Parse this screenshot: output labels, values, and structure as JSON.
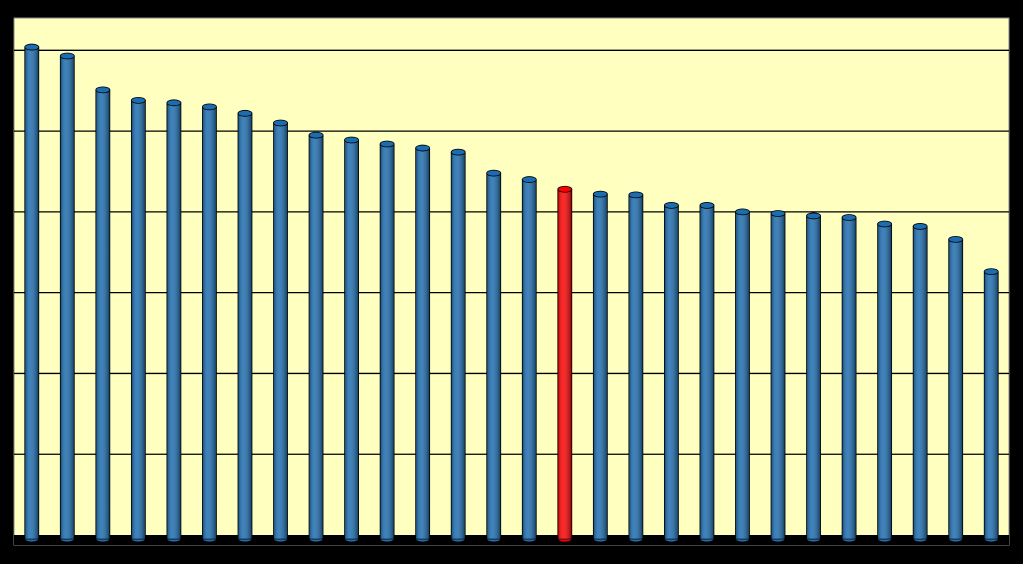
{
  "chart_data": {
    "type": "bar",
    "style": "cylinder",
    "categories": [
      null,
      null,
      null,
      null,
      null,
      null,
      null,
      null,
      null,
      null,
      null,
      null,
      null,
      null,
      null,
      null,
      null,
      null,
      null,
      null,
      null,
      null,
      null,
      null,
      null,
      null,
      null,
      null
    ],
    "values": [
      6.04,
      5.93,
      5.51,
      5.38,
      5.35,
      5.3,
      5.22,
      5.1,
      4.95,
      4.89,
      4.84,
      4.79,
      4.74,
      4.48,
      4.4,
      4.28,
      4.22,
      4.21,
      4.08,
      4.08,
      4.0,
      3.98,
      3.95,
      3.93,
      3.85,
      3.82,
      3.66,
      3.26
    ],
    "colors": [
      "#1b6cb0",
      "#1b6cb0",
      "#1b6cb0",
      "#1b6cb0",
      "#1b6cb0",
      "#1b6cb0",
      "#1b6cb0",
      "#1b6cb0",
      "#1b6cb0",
      "#1b6cb0",
      "#1b6cb0",
      "#1b6cb0",
      "#1b6cb0",
      "#1b6cb0",
      "#1b6cb0",
      "#ff0000",
      "#1b6cb0",
      "#1b6cb0",
      "#1b6cb0",
      "#1b6cb0",
      "#1b6cb0",
      "#1b6cb0",
      "#1b6cb0",
      "#1b6cb0",
      "#1b6cb0",
      "#1b6cb0",
      "#1b6cb0",
      "#1b6cb0"
    ],
    "ylim": [
      0,
      6.4
    ],
    "yticks": [
      0,
      1,
      2,
      3,
      4,
      5,
      6
    ],
    "grid": true,
    "plot_background": "#ffffc0"
  }
}
